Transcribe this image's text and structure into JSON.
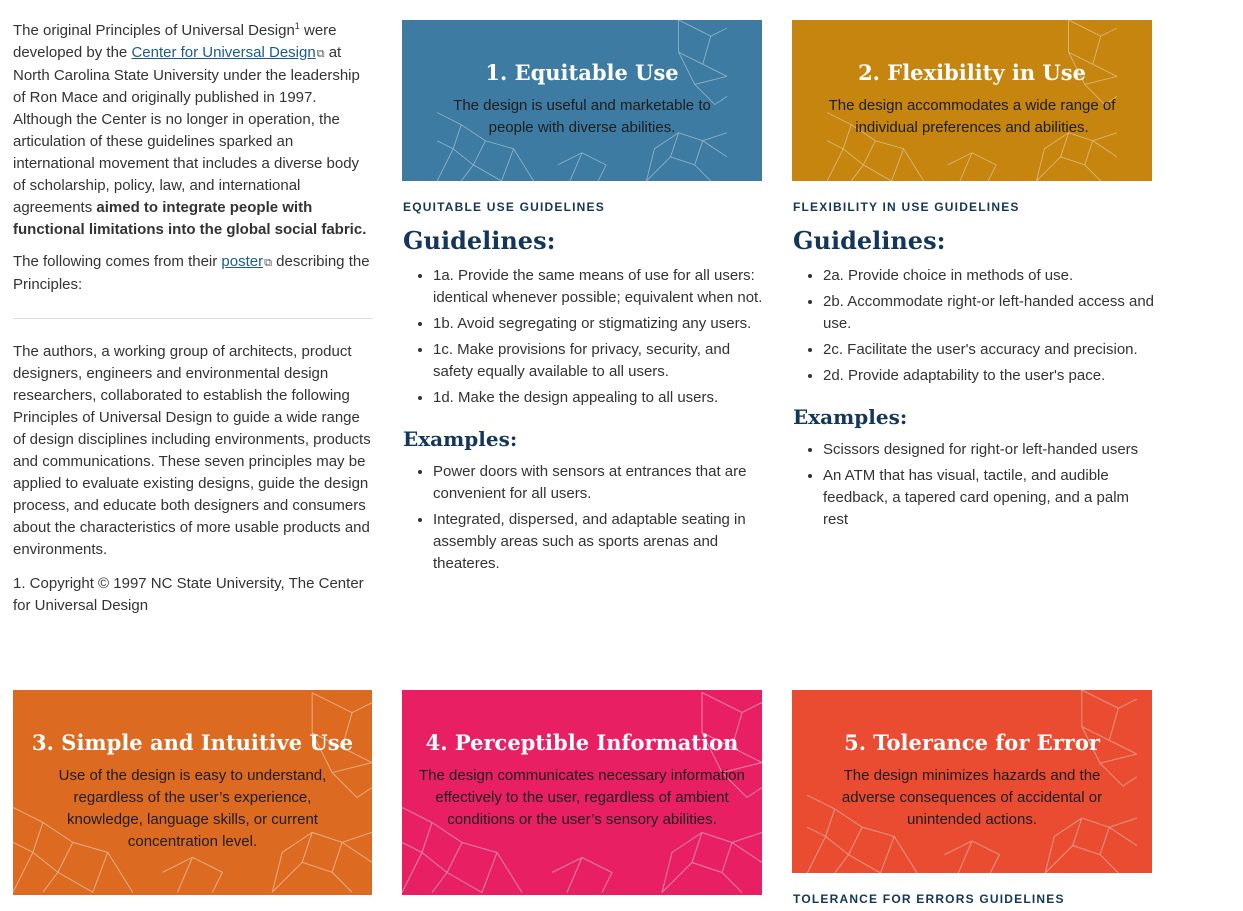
{
  "intro": {
    "p1_a": "The original Principles of Universal Design",
    "p1_sup": "1",
    "p1_b": " were developed by the ",
    "p1_link": "Center for Universal Design",
    "p1_c": " at North Carolina State University under the leadership of Ron Mace and originally published in 1997. Although the Center is no longer in operation, the articulation of these guidelines sparked an international movement that includes a diverse body of scholarship, policy, law, and international agreements ",
    "p1_bold": "aimed to integrate people with functional limitations into the global social fabric.",
    "p2_a": "The following comes from their ",
    "p2_link": "poster",
    "p2_b": " describing the Principles:",
    "p3": "The authors, a working group of architects, product designers, engineers and environmental design researchers, collaborated to establish the following Principles of Universal Design to guide a wide range of design disciplines including environments, products and communications. These seven principles may be applied to evaluate existing designs, guide the design process, and educate both designers and consumers about the characteristics of more usable products and environments.",
    "footnote": "1. Copyright © 1997 NC State University, The Center for Universal Design",
    "external_icon": "external-link-icon"
  },
  "principles": [
    {
      "title": "1. Equitable Use",
      "desc": "The design is useful and marketable to people with diverse abilities.",
      "color": "#3d7ba3"
    },
    {
      "title": "2. Flexibility in Use",
      "desc": "The design accommodates a wide range of individual preferences and abilities.",
      "color": "#c5850f"
    },
    {
      "title": "3. Simple and Intuitive Use",
      "desc": "Use of the design is easy to understand, regardless of the user’s experience, knowledge, language skills, or current concentration level.",
      "color": "#dc6a21"
    },
    {
      "title": "4. Perceptible Information",
      "desc": "The design communicates necessary information effectively to the user, regardless of ambient conditions or the user’s sensory abilities.",
      "color": "#e91f63"
    },
    {
      "title": "5. Tolerance for Error",
      "desc": "The design minimizes hazards and the adverse consequences of accidental or unintended actions.",
      "color": "#ea4c31"
    }
  ],
  "sections": {
    "equitable": {
      "label": "EQUITABLE USE GUIDELINES",
      "heading": "Guidelines:",
      "items": [
        "1a. Provide the same means of use for all users: identical whenever possible; equivalent when not.",
        "1b. Avoid segregating or stigmatizing any users.",
        "1c. Make provisions for privacy, security, and safety equally available to all users.",
        "1d. Make the design appealing to all users."
      ],
      "examples_heading": "Examples:",
      "examples": [
        "Power doors with sensors at entrances that are convenient for all users.",
        "Integrated, dispersed, and adaptable seating in assembly areas such as sports arenas and theateres."
      ]
    },
    "flexibility": {
      "label": "FLEXIBILITY IN USE GUIDELINES",
      "heading": "Guidelines:",
      "items": [
        "2a. Provide choice in methods of use.",
        "2b. Accommodate right-or left-handed access and use.",
        "2c. Facilitate the user's accuracy and precision.",
        "2d. Provide adaptability to the user's pace."
      ],
      "examples_heading": "Examples:",
      "examples": [
        "Scissors designed for right-or left-handed users",
        "An ATM that has visual, tactile, and audible feedback, a tapered card opening, and a palm rest"
      ]
    },
    "tolerance": {
      "label": "TOLERANCE FOR ERRORS GUIDELINES"
    }
  }
}
